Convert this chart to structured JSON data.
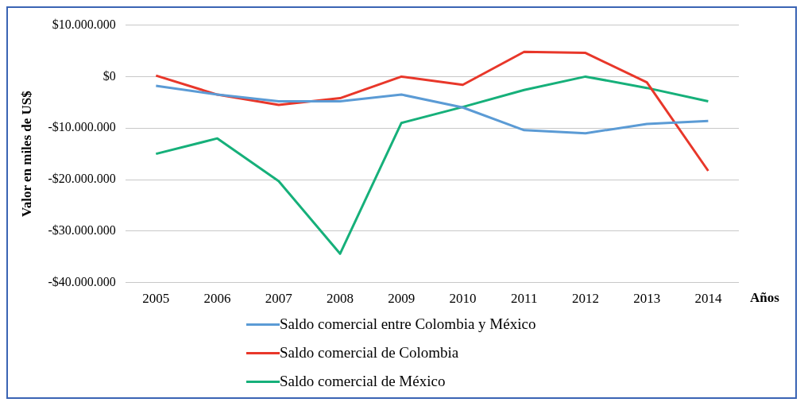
{
  "chart_data": {
    "type": "line",
    "ylabel": "Valor en miles de US$",
    "xlabel": "Años",
    "categories": [
      "2005",
      "2006",
      "2007",
      "2008",
      "2009",
      "2010",
      "2011",
      "2012",
      "2013",
      "2014"
    ],
    "series": [
      {
        "name": "Saldo comercial entre Colombia y México",
        "color": "#5b9bd5",
        "values": [
          -1800000,
          -3500000,
          -4800000,
          -4800000,
          -3500000,
          -6000000,
          -10400000,
          -11000000,
          -9200000,
          -8600000
        ]
      },
      {
        "name": "Saldo comercial de Colombia",
        "color": "#e8372a",
        "values": [
          200000,
          -3500000,
          -5500000,
          -4200000,
          0,
          -1600000,
          4800000,
          4600000,
          -1100000,
          -18300000
        ]
      },
      {
        "name": "Saldo comercial de México",
        "color": "#16b07a",
        "values": [
          -15000000,
          -12000000,
          -20300000,
          -34400000,
          -9000000,
          -5900000,
          -2600000,
          0,
          -2200000,
          -4800000
        ]
      }
    ],
    "ylim": [
      -40000000,
      10000000
    ],
    "yticks": [
      {
        "value": -40000000,
        "label": "-$40.000.000"
      },
      {
        "value": -30000000,
        "label": "-$30.000.000"
      },
      {
        "value": -20000000,
        "label": "-$20.000.000"
      },
      {
        "value": -10000000,
        "label": "-$10.000.000"
      },
      {
        "value": 0,
        "label": "$0"
      },
      {
        "value": 10000000,
        "label": "$10.000.000"
      }
    ],
    "grid": "y",
    "legend": "bottom",
    "marker": "none",
    "line_style": "solid"
  }
}
